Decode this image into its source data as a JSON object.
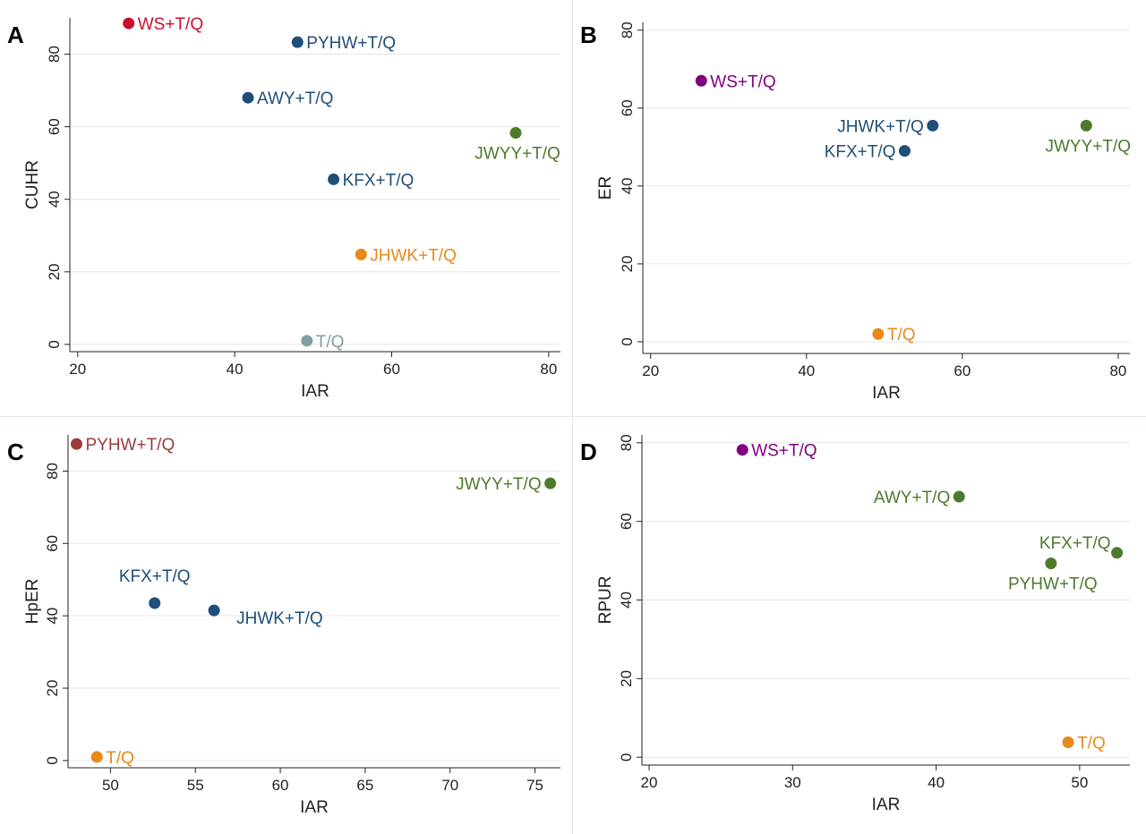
{
  "colors": {
    "crimson": "#c8102e",
    "navy": "#1f4e79",
    "olive": "#4e7a2c",
    "orange": "#e8891a",
    "gray": "#7f9fa0",
    "purple": "#800080",
    "maroon": "#9c3b3b",
    "grid": "#e6e6e6"
  },
  "chart_data": [
    {
      "panel": "A",
      "type": "scatter",
      "xlabel": "IAR",
      "ylabel": "CUHR",
      "xlim": [
        19,
        81.5
      ],
      "ylim": [
        -2,
        90
      ],
      "xticks": [
        20,
        40,
        60,
        80
      ],
      "yticks": [
        0,
        20,
        40,
        60,
        80
      ],
      "grid": "horizontal",
      "points": [
        {
          "label": "WS+T/Q",
          "x": 26.5,
          "y": 88.5,
          "color": "crimson",
          "label_side": "right"
        },
        {
          "label": "PYHW+T/Q",
          "x": 48,
          "y": 83.3,
          "color": "navy",
          "label_side": "right"
        },
        {
          "label": "AWY+T/Q",
          "x": 41.7,
          "y": 68,
          "color": "navy",
          "label_side": "right"
        },
        {
          "label": "JWYY+T/Q",
          "x": 75.8,
          "y": 58.3,
          "color": "olive",
          "label_side": "below"
        },
        {
          "label": "KFX+T/Q",
          "x": 52.6,
          "y": 45.5,
          "color": "navy",
          "label_side": "right"
        },
        {
          "label": "JHWK+T/Q",
          "x": 56.1,
          "y": 24.8,
          "color": "orange",
          "label_side": "right"
        },
        {
          "label": "T/Q",
          "x": 49.2,
          "y": 1,
          "color": "gray",
          "label_side": "right"
        }
      ]
    },
    {
      "panel": "B",
      "type": "scatter",
      "xlabel": "IAR",
      "ylabel": "ER",
      "xlim": [
        19,
        81.5
      ],
      "ylim": [
        -3,
        82
      ],
      "xticks": [
        20,
        40,
        60,
        80
      ],
      "yticks": [
        0,
        20,
        40,
        60,
        80
      ],
      "grid": "horizontal",
      "points": [
        {
          "label": "WS+T/Q",
          "x": 26.5,
          "y": 67,
          "color": "purple",
          "label_side": "right"
        },
        {
          "label": "JHWK+T/Q",
          "x": 56.2,
          "y": 55.5,
          "color": "navy",
          "label_side": "left"
        },
        {
          "label": "JWYY+T/Q",
          "x": 75.9,
          "y": 55.5,
          "color": "olive",
          "label_side": "below"
        },
        {
          "label": "KFX+T/Q",
          "x": 52.6,
          "y": 49,
          "color": "navy",
          "label_side": "left"
        },
        {
          "label": "T/Q",
          "x": 49.2,
          "y": 2,
          "color": "orange",
          "label_side": "right"
        }
      ]
    },
    {
      "panel": "C",
      "type": "scatter",
      "xlabel": "IAR",
      "ylabel": "HpER",
      "xlim": [
        47.5,
        76.5
      ],
      "ylim": [
        -2,
        90
      ],
      "xticks": [
        50,
        55,
        60,
        65,
        70,
        75
      ],
      "yticks": [
        0,
        20,
        40,
        60,
        80
      ],
      "grid": "horizontal",
      "points": [
        {
          "label": "PYHW+T/Q",
          "x": 48,
          "y": 87.5,
          "color": "maroon",
          "label_side": "right"
        },
        {
          "label": "JWYY+T/Q",
          "x": 75.9,
          "y": 76.6,
          "color": "olive",
          "label_side": "left"
        },
        {
          "label": "KFX+T/Q",
          "x": 52.6,
          "y": 43.5,
          "color": "navy",
          "label_side": "above"
        },
        {
          "label": "JHWK+T/Q",
          "x": 56.1,
          "y": 41.5,
          "color": "navy",
          "label_side": "below-right"
        },
        {
          "label": "T/Q",
          "x": 49.2,
          "y": 1,
          "color": "orange",
          "label_side": "right"
        }
      ]
    },
    {
      "panel": "D",
      "type": "scatter",
      "xlabel": "IAR",
      "ylabel": "RPUR",
      "xlim": [
        19.5,
        53.5
      ],
      "ylim": [
        -2,
        82
      ],
      "xticks": [
        20,
        30,
        40,
        50
      ],
      "yticks": [
        0,
        20,
        40,
        60,
        80
      ],
      "grid": "horizontal",
      "points": [
        {
          "label": "WS+T/Q",
          "x": 26.5,
          "y": 78.2,
          "color": "purple",
          "label_side": "right"
        },
        {
          "label": "AWY+T/Q",
          "x": 41.6,
          "y": 66.3,
          "color": "olive",
          "label_side": "left"
        },
        {
          "label": "KFX+T/Q",
          "x": 52.6,
          "y": 52,
          "color": "olive",
          "label_side": "above-left"
        },
        {
          "label": "PYHW+T/Q",
          "x": 48,
          "y": 49.3,
          "color": "olive",
          "label_side": "below"
        },
        {
          "label": "T/Q",
          "x": 49.2,
          "y": 3.8,
          "color": "orange",
          "label_side": "right"
        }
      ]
    }
  ]
}
